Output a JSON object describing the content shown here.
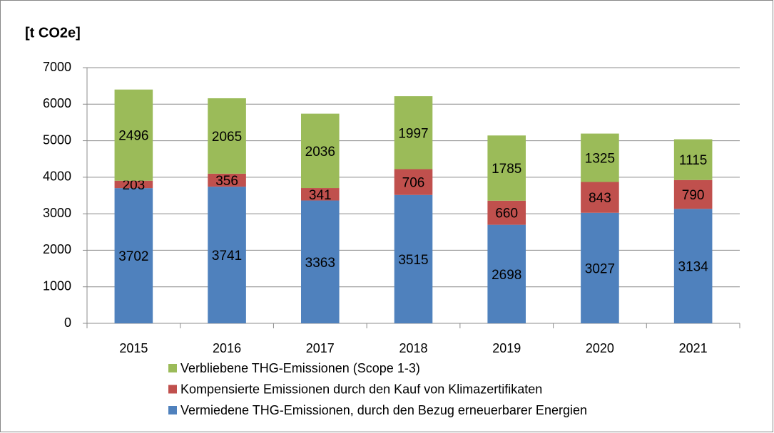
{
  "chart_data": {
    "type": "stacked_bar",
    "title": "[t CO2e]",
    "categories": [
      "2015",
      "2016",
      "2017",
      "2018",
      "2019",
      "2020",
      "2021"
    ],
    "series": [
      {
        "name": "Vermiedene THG-Emissionen, durch den Bezug erneuerbarer Energien",
        "color": "#4f81bd",
        "values": [
          3702,
          3741,
          3363,
          3515,
          2698,
          3027,
          3134
        ]
      },
      {
        "name": "Kompensierte Emissionen durch den Kauf von Klimazertifikaten",
        "color": "#c0504d",
        "values": [
          203,
          356,
          341,
          706,
          660,
          843,
          790
        ]
      },
      {
        "name": "Verbliebene THG-Emissionen (Scope 1-3)",
        "color": "#9bbb59",
        "values": [
          2496,
          2065,
          2036,
          1997,
          1785,
          1325,
          1115
        ]
      }
    ],
    "ylim": [
      0,
      7000
    ],
    "yticks": [
      0,
      1000,
      2000,
      3000,
      4000,
      5000,
      6000,
      7000
    ],
    "grid": true,
    "legend": "bottom"
  }
}
